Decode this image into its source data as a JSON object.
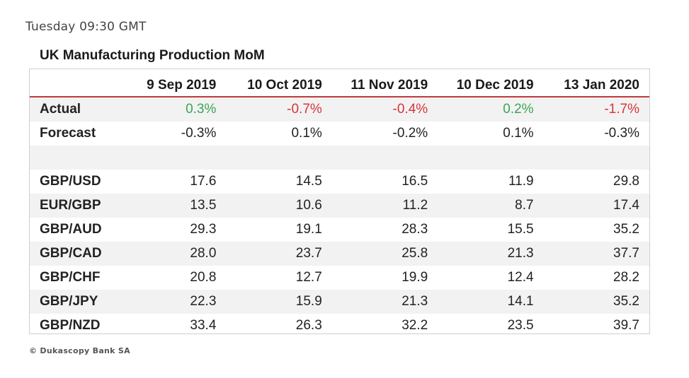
{
  "header": {
    "release_time": "Tuesday 09:30 GMT",
    "table_title": "UK Manufacturing Production MoM"
  },
  "table": {
    "columns": [
      "9 Sep 2019",
      "10 Oct 2019",
      "11 Nov 2019",
      "10 Dec 2019",
      "13 Jan 2020"
    ],
    "actual": {
      "label": "Actual",
      "values": [
        "0.3%",
        "-0.7%",
        "-0.4%",
        "0.2%",
        "-1.7%"
      ]
    },
    "forecast": {
      "label": "Forecast",
      "values": [
        "-0.3%",
        "0.1%",
        "-0.2%",
        "0.1%",
        "-0.3%"
      ]
    },
    "pairs": [
      {
        "label": "GBP/USD",
        "values": [
          "17.6",
          "14.5",
          "16.5",
          "11.9",
          "29.8"
        ]
      },
      {
        "label": "EUR/GBP",
        "values": [
          "13.5",
          "10.6",
          "11.2",
          "8.7",
          "17.4"
        ]
      },
      {
        "label": "GBP/AUD",
        "values": [
          "29.3",
          "19.1",
          "28.3",
          "15.5",
          "35.2"
        ]
      },
      {
        "label": "GBP/CAD",
        "values": [
          "28.0",
          "23.7",
          "25.8",
          "21.3",
          "37.7"
        ]
      },
      {
        "label": "GBP/CHF",
        "values": [
          "20.8",
          "12.7",
          "19.9",
          "12.4",
          "28.2"
        ]
      },
      {
        "label": "GBP/JPY",
        "values": [
          "22.3",
          "15.9",
          "21.3",
          "14.1",
          "35.2"
        ]
      },
      {
        "label": "GBP/NZD",
        "values": [
          "33.4",
          "26.3",
          "32.2",
          "23.5",
          "39.7"
        ]
      }
    ]
  },
  "colors": {
    "positive": "#3aa655",
    "negative": "#d9343a",
    "header_rule": "#c0393b",
    "row_shade": "#f2f2f2"
  },
  "footer": {
    "copyright": "© Dukascopy Bank SA"
  }
}
